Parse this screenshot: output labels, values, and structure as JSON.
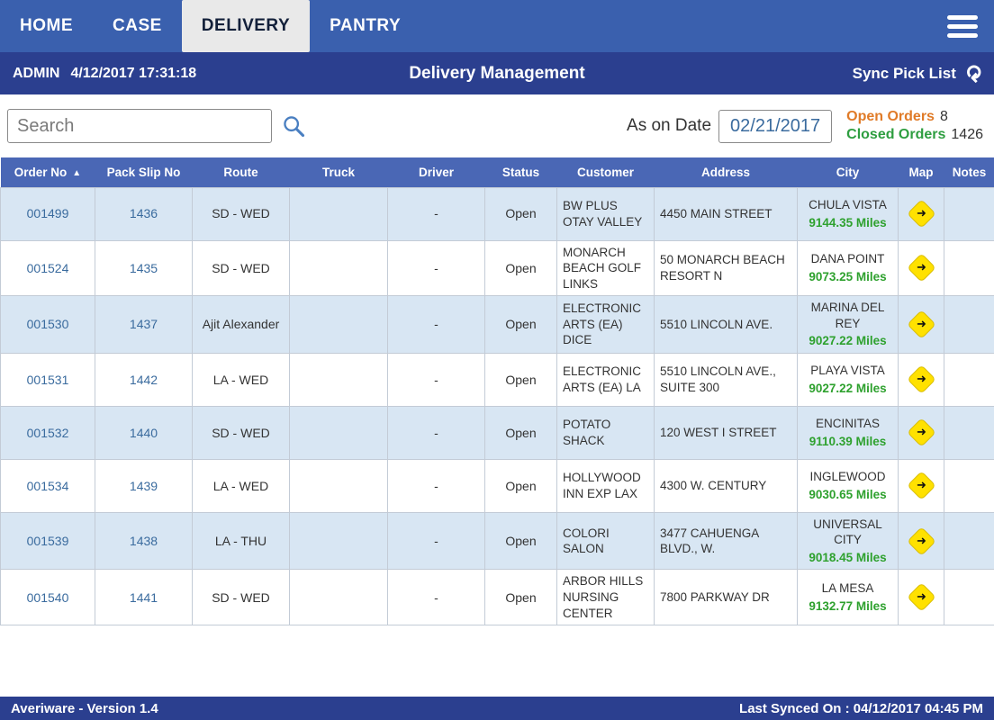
{
  "nav": {
    "tabs": [
      {
        "label": "HOME",
        "active": false
      },
      {
        "label": "CASE",
        "active": false
      },
      {
        "label": "DELIVERY",
        "active": true
      },
      {
        "label": "PANTRY",
        "active": false
      }
    ]
  },
  "header": {
    "user": "ADMIN",
    "datetime": "4/12/2017 17:31:18",
    "title": "Delivery Management",
    "sync_label": "Sync Pick List"
  },
  "toolbar": {
    "search_placeholder": "Search",
    "as_on_date_label": "As on Date",
    "as_on_date_value": "02/21/2017",
    "open_orders_label": "Open Orders",
    "open_orders_count": "8",
    "closed_orders_label": "Closed Orders",
    "closed_orders_count": "1426"
  },
  "table": {
    "columns": [
      "Order No",
      "Pack Slip No",
      "Route",
      "Truck",
      "Driver",
      "Status",
      "Customer",
      "Address",
      "City",
      "Map",
      "Notes"
    ],
    "rows": [
      {
        "order_no": "001499",
        "pack_slip_no": "1436",
        "route": "SD - WED",
        "truck": "",
        "driver": "-",
        "status": "Open",
        "customer": "BW PLUS OTAY VALLEY",
        "address": "4450 MAIN STREET",
        "city": "CHULA VISTA",
        "miles": "9144.35 Miles",
        "notes": ""
      },
      {
        "order_no": "001524",
        "pack_slip_no": "1435",
        "route": "SD - WED",
        "truck": "",
        "driver": "-",
        "status": "Open",
        "customer": "MONARCH BEACH GOLF LINKS",
        "address": "50 MONARCH BEACH RESORT N",
        "city": "DANA POINT",
        "miles": "9073.25 Miles",
        "notes": ""
      },
      {
        "order_no": "001530",
        "pack_slip_no": "1437",
        "route": "Ajit Alexander",
        "truck": "",
        "driver": "-",
        "status": "Open",
        "customer": "ELECTRONIC ARTS (EA) DICE",
        "address": "5510 LINCOLN AVE.",
        "city": "MARINA DEL REY",
        "miles": "9027.22 Miles",
        "notes": ""
      },
      {
        "order_no": "001531",
        "pack_slip_no": "1442",
        "route": "LA - WED",
        "truck": "",
        "driver": "-",
        "status": "Open",
        "customer": "ELECTRONIC ARTS (EA) LA",
        "address": "5510 LINCOLN AVE., SUITE 300",
        "city": "PLAYA VISTA",
        "miles": "9027.22 Miles",
        "notes": ""
      },
      {
        "order_no": "001532",
        "pack_slip_no": "1440",
        "route": "SD - WED",
        "truck": "",
        "driver": "-",
        "status": "Open",
        "customer": "POTATO SHACK",
        "address": "120 WEST I STREET",
        "city": "ENCINITAS",
        "miles": "9110.39 Miles",
        "notes": ""
      },
      {
        "order_no": "001534",
        "pack_slip_no": "1439",
        "route": "LA - WED",
        "truck": "",
        "driver": "-",
        "status": "Open",
        "customer": "HOLLYWOOD INN EXP LAX",
        "address": "4300 W. CENTURY",
        "city": "INGLEWOOD",
        "miles": "9030.65 Miles",
        "notes": ""
      },
      {
        "order_no": "001539",
        "pack_slip_no": "1438",
        "route": "LA - THU",
        "truck": "",
        "driver": "-",
        "status": "Open",
        "customer": "COLORI SALON",
        "address": "3477 CAHUENGA BLVD., W.",
        "city": "UNIVERSAL CITY",
        "miles": "9018.45 Miles",
        "notes": ""
      },
      {
        "order_no": "001540",
        "pack_slip_no": "1441",
        "route": "SD - WED",
        "truck": "",
        "driver": "-",
        "status": "Open",
        "customer": "ARBOR HILLS NURSING CENTER",
        "address": "7800 PARKWAY DR",
        "city": "LA MESA",
        "miles": "9132.77 Miles",
        "notes": ""
      }
    ]
  },
  "icons": {
    "sort_asc": "▲",
    "sync": "⟳",
    "map_arrow": "➜"
  },
  "colors": {
    "nav_blue": "#3a60ae",
    "bar_navy": "#2b3f8f",
    "header_blue": "#4a67b5",
    "row_alt": "#d8e6f3",
    "link_blue": "#3a6b9e",
    "miles_green": "#2ea12e",
    "open_orange": "#e07b28",
    "closed_green": "#2e9e40",
    "map_yellow": "#ffe100"
  },
  "footer": {
    "left": "Averiware - Version 1.4",
    "right": "Last Synced On : 04/12/2017 04:45 PM"
  }
}
